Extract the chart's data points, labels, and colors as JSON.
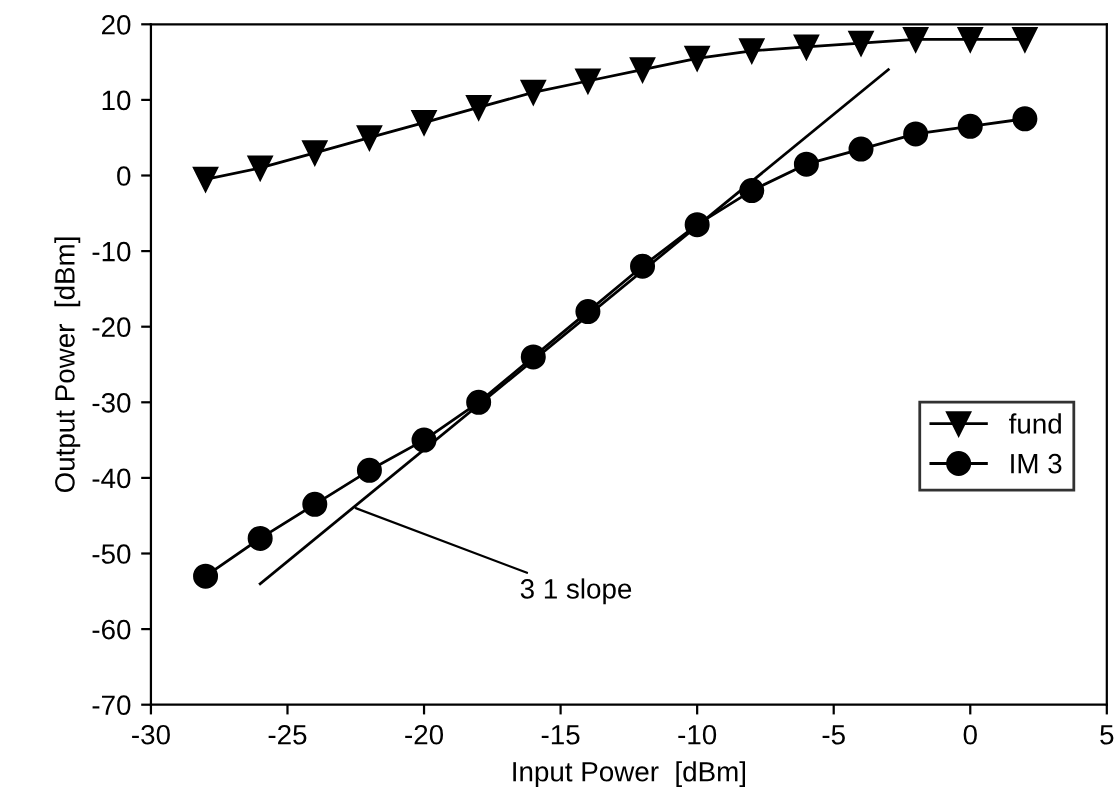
{
  "chart_data": {
    "type": "line",
    "xlabel": "Input Power  [dBm]",
    "ylabel": "Output Power  [dBm]",
    "xlim": [
      -30,
      5
    ],
    "xticks": [
      -30,
      -25,
      -20,
      -15,
      -10,
      -5,
      0,
      5
    ],
    "ylim": [
      -70,
      20
    ],
    "yticks": [
      -70,
      -60,
      -50,
      -40,
      -30,
      -20,
      -10,
      0,
      10,
      20
    ],
    "grid": false,
    "legend": "right",
    "series": [
      {
        "name": "fund",
        "color": "#000000",
        "marker": "triangle",
        "x": [
          -28,
          -26,
          -24,
          -22,
          -20,
          -18,
          -16,
          -14,
          -12,
          -10,
          -8,
          -6,
          -4,
          -2,
          0,
          2
        ],
        "values": [
          -0.5,
          1,
          3,
          5,
          7,
          9,
          11,
          12.5,
          14,
          15.5,
          16.5,
          17,
          17.5,
          18,
          18,
          18
        ]
      },
      {
        "name": "IM 3",
        "color": "#000000",
        "marker": "circle",
        "x": [
          -28,
          -26,
          -24,
          -22,
          -20,
          -18,
          -16,
          -14,
          -12,
          -10,
          -8,
          -6,
          -4,
          -2,
          0,
          2
        ],
        "values": [
          -53,
          -48,
          -43.5,
          -39,
          -35,
          -30,
          -24,
          -18,
          -12,
          -6.5,
          -2,
          1.5,
          3.5,
          5.5,
          6.5,
          7.5
        ]
      },
      {
        "color": "#000000",
        "marker": "none",
        "x": [
          -26,
          -3
        ],
        "values": [
          -54,
          14
        ]
      }
    ],
    "annotations": [
      {
        "text": "3 1 slope",
        "x": -22.5,
        "y": -44
      }
    ]
  }
}
